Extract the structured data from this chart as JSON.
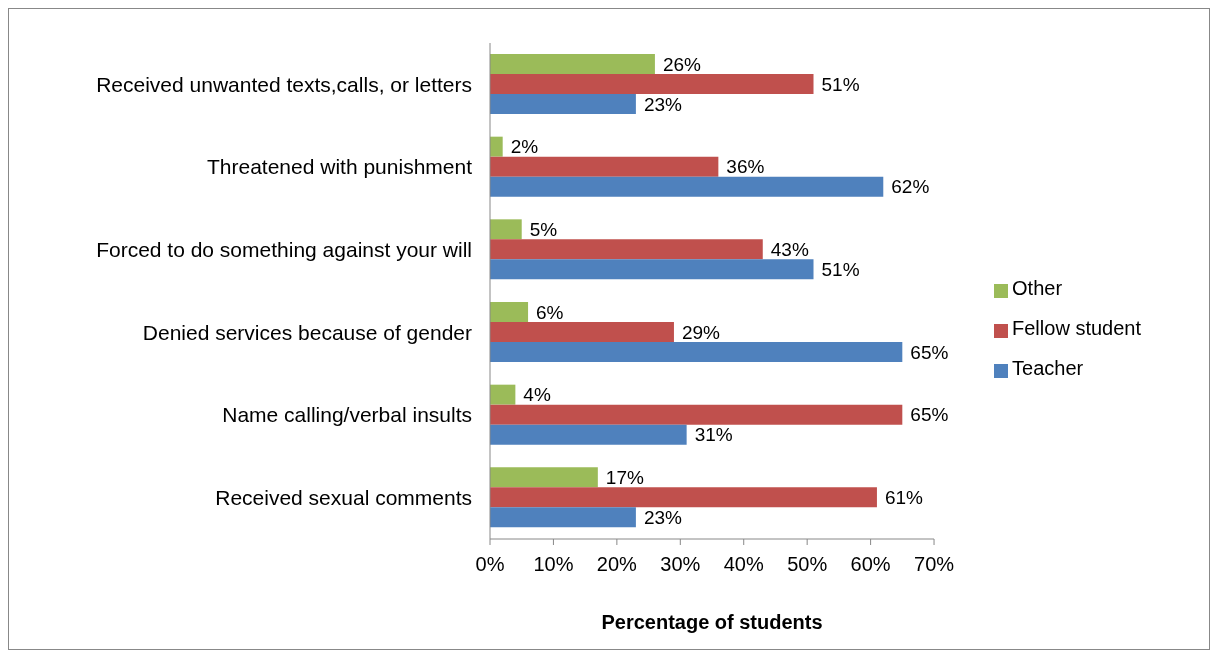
{
  "chart_data": {
    "type": "bar",
    "orientation": "horizontal",
    "categories": [
      "Received unwanted texts,calls, or letters",
      "Threatened with punishment",
      "Forced to do something against your will",
      "Denied services because of gender",
      "Name calling/verbal insults",
      "Received sexual comments"
    ],
    "series": [
      {
        "name": "Other",
        "color": "#9bbb59",
        "values": [
          26,
          2,
          5,
          6,
          4,
          17
        ],
        "value_labels": [
          "26%",
          "2%",
          "5%",
          "6%",
          "4%",
          "17%"
        ]
      },
      {
        "name": "Fellow student",
        "color": "#c0504d",
        "values": [
          51,
          36,
          43,
          29,
          65,
          61
        ],
        "value_labels": [
          "51%",
          "36%",
          "43%",
          "29%",
          "65%",
          "61%"
        ]
      },
      {
        "name": "Teacher",
        "color": "#4f81bd",
        "values": [
          23,
          62,
          51,
          65,
          31,
          23
        ],
        "value_labels": [
          "23%",
          "62%",
          "51%",
          "65%",
          "31%",
          "23%"
        ]
      }
    ],
    "xlabel": "Percentage of students",
    "xlim": [
      0,
      70
    ],
    "xticks": [
      {
        "value": 0,
        "label": "0%"
      },
      {
        "value": 10,
        "label": "10%"
      },
      {
        "value": 20,
        "label": "20%"
      },
      {
        "value": 30,
        "label": "30%"
      },
      {
        "value": 40,
        "label": "40%"
      },
      {
        "value": 50,
        "label": "50%"
      },
      {
        "value": 60,
        "label": "60%"
      },
      {
        "value": 70,
        "label": "70%"
      }
    ],
    "legend": "right"
  }
}
